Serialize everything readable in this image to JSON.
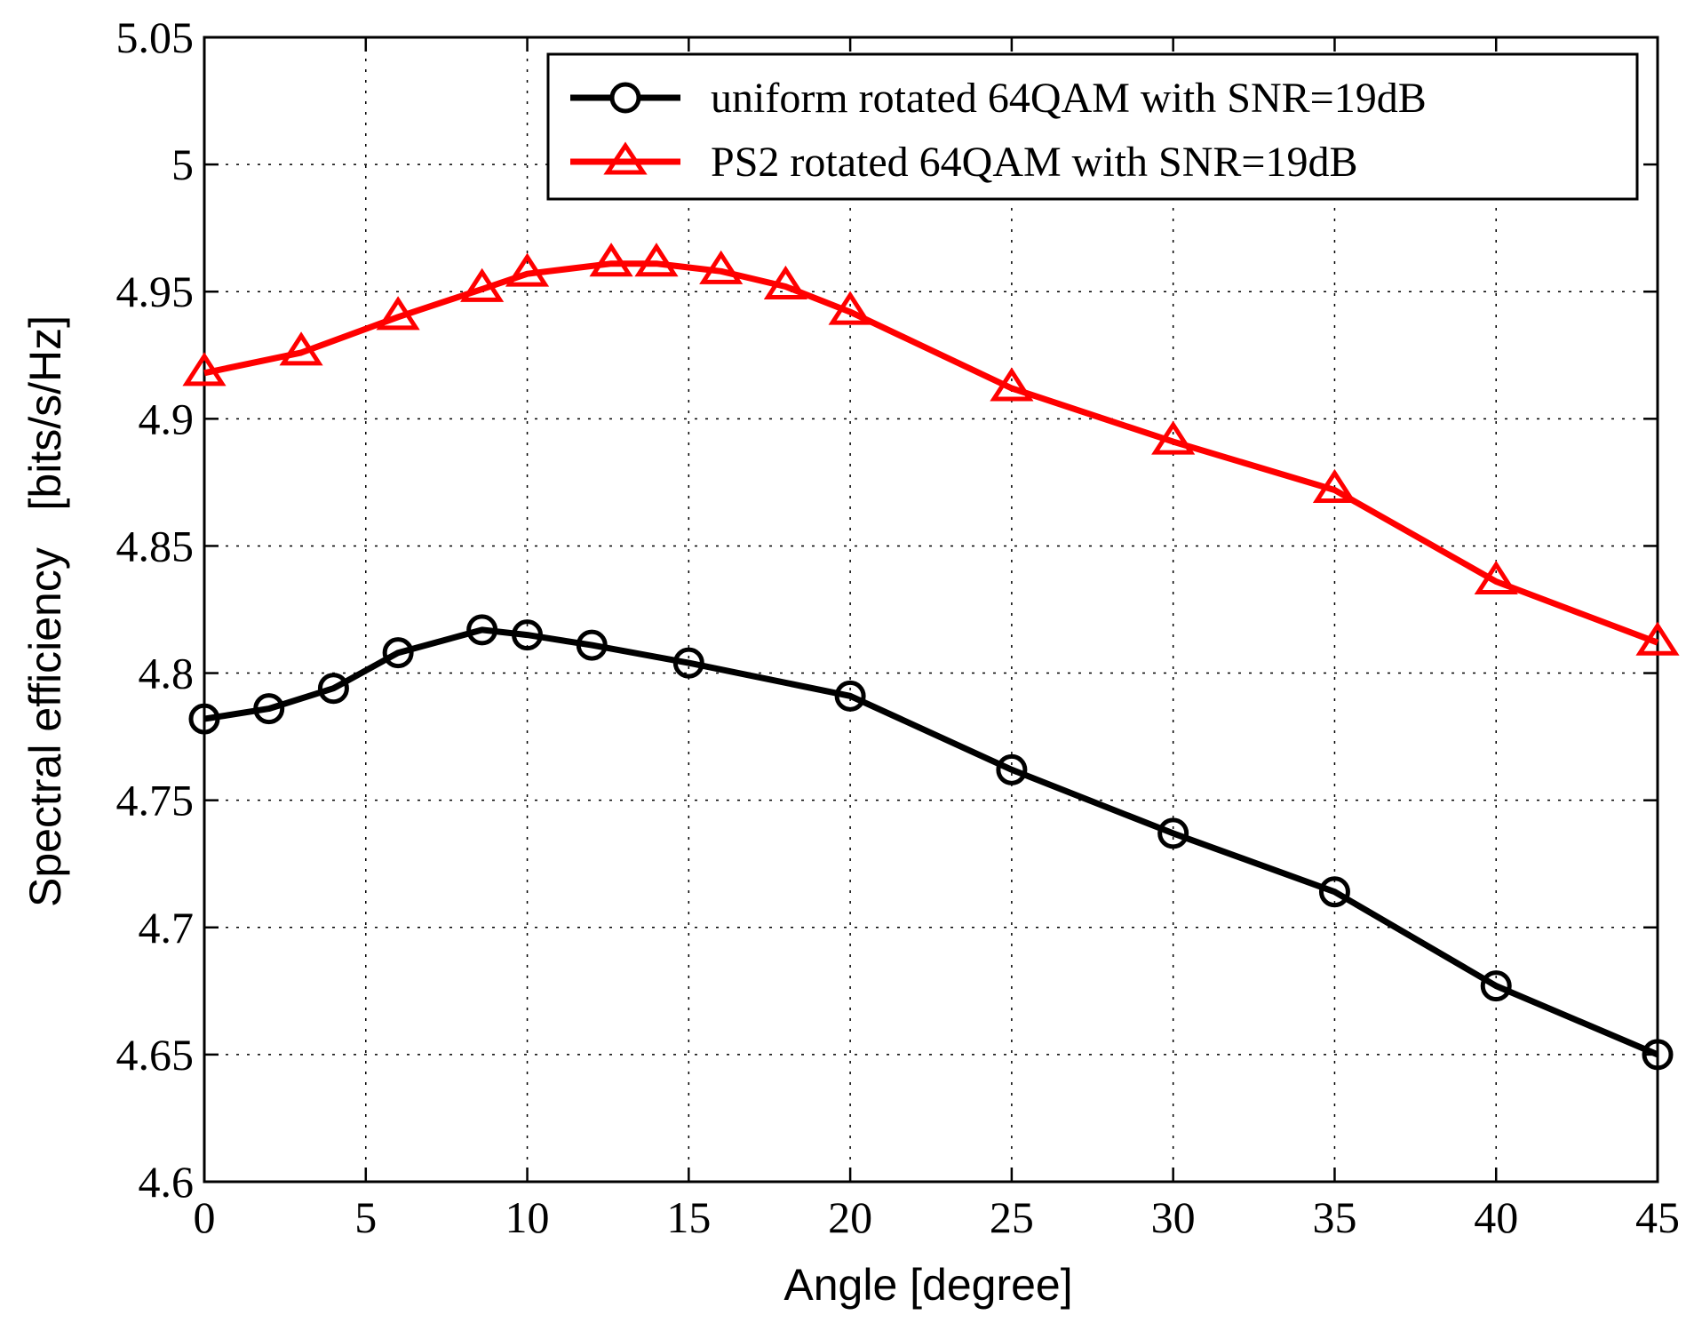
{
  "chart_data": {
    "type": "line",
    "title": "",
    "xlabel": "Angle [degree]",
    "ylabel": "Spectral efficiency   [bits/s/Hz]",
    "xlim": [
      0,
      45
    ],
    "ylim": [
      4.6,
      5.05
    ],
    "xticks": [
      0,
      5,
      10,
      15,
      20,
      25,
      30,
      35,
      40,
      45
    ],
    "xtick_labels": [
      "0",
      "5",
      "10",
      "15",
      "20",
      "25",
      "30",
      "35",
      "40",
      "45"
    ],
    "yticks": [
      4.6,
      4.65,
      4.7,
      4.75,
      4.8,
      4.85,
      4.9,
      4.95,
      5.0,
      5.05
    ],
    "ytick_labels": [
      "4.6",
      "4.65",
      "4.7",
      "4.75",
      "4.8",
      "4.85",
      "4.9",
      "4.95",
      "5",
      "5.05"
    ],
    "grid": true,
    "legend_position": "top-right",
    "series": [
      {
        "name": "uniform rotated 64QAM with SNR=19dB",
        "color": "#000000",
        "marker": "circle",
        "x": [
          0,
          2,
          4,
          6,
          8.6,
          10,
          12,
          15,
          20,
          25,
          30,
          35,
          40,
          45
        ],
        "y": [
          4.782,
          4.786,
          4.794,
          4.808,
          4.817,
          4.815,
          4.811,
          4.804,
          4.791,
          4.762,
          4.737,
          4.714,
          4.677,
          4.65
        ]
      },
      {
        "name": "PS2 rotated 64QAM with SNR=19dB",
        "color": "#ff0000",
        "marker": "triangle",
        "x": [
          0,
          3,
          6,
          8.6,
          10,
          12.6,
          14,
          16,
          18,
          20,
          25,
          30,
          35,
          40,
          45
        ],
        "y": [
          4.918,
          4.926,
          4.94,
          4.951,
          4.957,
          4.961,
          4.961,
          4.958,
          4.952,
          4.942,
          4.912,
          4.891,
          4.872,
          4.836,
          4.812
        ]
      }
    ]
  }
}
